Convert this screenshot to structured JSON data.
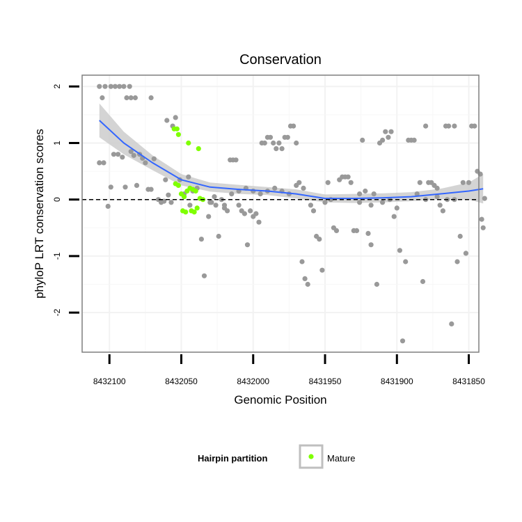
{
  "chart_data": {
    "type": "scatter",
    "title": "Conservation",
    "xlabel": "Genomic Position",
    "ylabel": "phyloP LRT conservation scores",
    "xlim": [
      8432119,
      8431843
    ],
    "x_reversed": true,
    "ylim": [
      -2.7,
      2.2
    ],
    "x_ticks": [
      8432100,
      8432050,
      8432000,
      8431950,
      8431900,
      8431850
    ],
    "x_tick_labels": [
      "8432100",
      "8432050",
      "8432000",
      "8431950",
      "8431900",
      "8431850"
    ],
    "y_ticks": [
      -2,
      -1,
      0,
      1,
      2
    ],
    "y_tick_labels": [
      "-2",
      "-1",
      "0",
      "1",
      "2"
    ],
    "grid": true,
    "reference_line": {
      "y": 0,
      "style": "dashed"
    },
    "colors": {
      "background_points": "#999999",
      "mature": "#7fff00",
      "smooth": "#3366ff",
      "band": "#cccccc"
    },
    "series": [
      {
        "name": "background",
        "points": [
          [
            8432107,
            2.0
          ],
          [
            8432103,
            2.0
          ],
          [
            8432099,
            2.0
          ],
          [
            8432096,
            2.0
          ],
          [
            8432093,
            2.0
          ],
          [
            8432090,
            2.0
          ],
          [
            8432086,
            2.0
          ],
          [
            8432105,
            1.8
          ],
          [
            8432088,
            1.8
          ],
          [
            8432085,
            1.8
          ],
          [
            8432082,
            1.8
          ],
          [
            8432071,
            1.8
          ],
          [
            8432107,
            0.65
          ],
          [
            8432104,
            0.65
          ],
          [
            8432101,
            -0.12
          ],
          [
            8432099,
            0.22
          ],
          [
            8432097,
            0.8
          ],
          [
            8432094,
            0.8
          ],
          [
            8432091,
            0.75
          ],
          [
            8432089,
            0.22
          ],
          [
            8432085,
            0.85
          ],
          [
            8432083,
            0.78
          ],
          [
            8432081,
            0.25
          ],
          [
            8432079,
            0.8
          ],
          [
            8432077,
            0.73
          ],
          [
            8432075,
            0.65
          ],
          [
            8432073,
            0.18
          ],
          [
            8432071,
            0.18
          ],
          [
            8432069,
            0.72
          ],
          [
            8432066,
            0.0
          ],
          [
            8432064,
            -0.05
          ],
          [
            8432062,
            -0.03
          ],
          [
            8432061,
            0.35
          ],
          [
            8432059,
            0.08
          ],
          [
            8432057,
            -0.05
          ],
          [
            8432056,
            1.3
          ],
          [
            8432054,
            1.45
          ],
          [
            8432060,
            1.4
          ],
          [
            8432051,
            0.35
          ],
          [
            8432045,
            0.4
          ],
          [
            8432042,
            0.15
          ],
          [
            8432039,
            0.2
          ],
          [
            8432036,
            -0.7
          ],
          [
            8432034,
            -1.35
          ],
          [
            8432031,
            -0.3
          ],
          [
            8432029,
            -0.05
          ],
          [
            8432027,
            0.05
          ],
          [
            8432024,
            -0.65
          ],
          [
            8432022,
            0.0
          ],
          [
            8432020,
            -0.1
          ],
          [
            8432018,
            -0.2
          ],
          [
            8432016,
            0.7
          ],
          [
            8432014,
            0.7
          ],
          [
            8432012,
            0.7
          ],
          [
            8432010,
            -0.1
          ],
          [
            8432008,
            -0.2
          ],
          [
            8432006,
            -0.25
          ],
          [
            8432004,
            -0.8
          ],
          [
            8432002,
            -0.2
          ],
          [
            8432000,
            -0.3
          ],
          [
            8431998,
            -0.25
          ],
          [
            8431996,
            -0.4
          ],
          [
            8431994,
            1.0
          ],
          [
            8431992,
            1.0
          ],
          [
            8431990,
            1.1
          ],
          [
            8431988,
            1.1
          ],
          [
            8431986,
            1.0
          ],
          [
            8431984,
            0.9
          ],
          [
            8431982,
            1.0
          ],
          [
            8431980,
            0.9
          ],
          [
            8431978,
            1.1
          ],
          [
            8431976,
            1.1
          ],
          [
            8431974,
            1.3
          ],
          [
            8431972,
            1.3
          ],
          [
            8431970,
            1.0
          ],
          [
            8431968,
            0.3
          ],
          [
            8431966,
            -1.1
          ],
          [
            8431964,
            -1.4
          ],
          [
            8431962,
            -1.5
          ],
          [
            8431960,
            -0.1
          ],
          [
            8431958,
            -0.2
          ],
          [
            8431956,
            -0.65
          ],
          [
            8431954,
            -0.7
          ],
          [
            8431952,
            -1.25
          ],
          [
            8431950,
            -0.05
          ],
          [
            8431948,
            0.3
          ],
          [
            8431946,
            0.0
          ],
          [
            8431944,
            -0.5
          ],
          [
            8431942,
            -0.55
          ],
          [
            8431940,
            0.35
          ],
          [
            8431938,
            0.4
          ],
          [
            8431936,
            0.4
          ],
          [
            8431934,
            0.4
          ],
          [
            8431932,
            0.3
          ],
          [
            8431930,
            -0.55
          ],
          [
            8431928,
            -0.55
          ],
          [
            8431926,
            0.1
          ],
          [
            8431924,
            1.05
          ],
          [
            8431922,
            0.15
          ],
          [
            8431920,
            -0.6
          ],
          [
            8431918,
            -0.8
          ],
          [
            8431916,
            0.1
          ],
          [
            8431914,
            -1.5
          ],
          [
            8431912,
            1.0
          ],
          [
            8431910,
            1.05
          ],
          [
            8431908,
            1.2
          ],
          [
            8431906,
            1.1
          ],
          [
            8431904,
            1.2
          ],
          [
            8431902,
            -0.3
          ],
          [
            8431900,
            -0.15
          ],
          [
            8431898,
            -0.9
          ],
          [
            8431896,
            -2.5
          ],
          [
            8431894,
            -1.1
          ],
          [
            8431892,
            1.05
          ],
          [
            8431890,
            1.05
          ],
          [
            8431888,
            1.05
          ],
          [
            8431886,
            0.1
          ],
          [
            8431884,
            0.3
          ],
          [
            8431882,
            -1.45
          ],
          [
            8431880,
            1.3
          ],
          [
            8431878,
            0.3
          ],
          [
            8431876,
            0.3
          ],
          [
            8431874,
            0.25
          ],
          [
            8431872,
            0.2
          ],
          [
            8431870,
            -0.1
          ],
          [
            8431868,
            -0.2
          ],
          [
            8431866,
            1.3
          ],
          [
            8431864,
            1.3
          ],
          [
            8431862,
            -2.2
          ],
          [
            8431860,
            1.3
          ],
          [
            8431858,
            -1.1
          ],
          [
            8431856,
            -0.65
          ],
          [
            8431854,
            0.3
          ],
          [
            8431852,
            -0.95
          ],
          [
            8431850,
            0.3
          ],
          [
            8431848,
            1.3
          ],
          [
            8431846,
            1.3
          ],
          [
            8431844,
            0.5
          ],
          [
            8431842,
            0.45
          ],
          [
            8431841,
            -0.35
          ],
          [
            8431840,
            -0.5
          ],
          [
            8431839,
            0.02
          ],
          [
            8431926,
            -0.05
          ],
          [
            8431918,
            -0.1
          ],
          [
            8431910,
            -0.05
          ],
          [
            8431905,
            0.0
          ],
          [
            8431880,
            0.0
          ],
          [
            8431872,
            0.05
          ],
          [
            8431865,
            0.0
          ],
          [
            8431860,
            0.0
          ],
          [
            8431990,
            0.15
          ],
          [
            8431985,
            0.2
          ],
          [
            8431980,
            0.15
          ],
          [
            8431975,
            0.1
          ],
          [
            8431970,
            0.25
          ],
          [
            8431965,
            0.2
          ],
          [
            8432015,
            0.1
          ],
          [
            8432010,
            0.15
          ],
          [
            8432005,
            0.2
          ],
          [
            8432000,
            0.15
          ],
          [
            8431995,
            0.1
          ],
          [
            8432030,
            -0.05
          ],
          [
            8432026,
            -0.1
          ],
          [
            8432020,
            -0.15
          ],
          [
            8432044,
            -0.1
          ],
          [
            8432048,
            0.1
          ]
        ]
      },
      {
        "name": "Mature",
        "points": [
          [
            8432055,
            1.25
          ],
          [
            8432053,
            1.25
          ],
          [
            8432052,
            1.15
          ],
          [
            8432045,
            1.0
          ],
          [
            8432038,
            0.9
          ],
          [
            8432054,
            0.28
          ],
          [
            8432052,
            0.25
          ],
          [
            8432050,
            0.1
          ],
          [
            8432048,
            0.05
          ],
          [
            8432046,
            0.15
          ],
          [
            8432044,
            0.2
          ],
          [
            8432042,
            0.18
          ],
          [
            8432040,
            0.15
          ],
          [
            8432049,
            -0.2
          ],
          [
            8432047,
            -0.22
          ],
          [
            8432043,
            -0.2
          ],
          [
            8432041,
            -0.22
          ],
          [
            8432039,
            -0.15
          ],
          [
            8432037,
            0.02
          ],
          [
            8432035,
            0.0
          ]
        ]
      }
    ],
    "smooth": {
      "x": [
        8432107,
        8432090,
        8432070,
        8432050,
        8432030,
        8432010,
        8431990,
        8431970,
        8431950,
        8431930,
        8431910,
        8431890,
        8431870,
        8431850,
        8431840
      ],
      "y": [
        1.4,
        1.0,
        0.65,
        0.35,
        0.22,
        0.18,
        0.15,
        0.1,
        0.02,
        0.02,
        0.03,
        0.05,
        0.1,
        0.15,
        0.19
      ],
      "lower": [
        1.1,
        0.8,
        0.52,
        0.25,
        0.14,
        0.1,
        0.08,
        0.02,
        -0.05,
        -0.06,
        -0.05,
        -0.03,
        0.01,
        0.0,
        -0.07
      ],
      "upper": [
        1.7,
        1.2,
        0.78,
        0.45,
        0.3,
        0.26,
        0.22,
        0.18,
        0.09,
        0.1,
        0.11,
        0.13,
        0.19,
        0.3,
        0.45
      ]
    },
    "legend": {
      "title": "Hairpin partition",
      "entries": [
        "Mature"
      ],
      "position": "bottom"
    }
  }
}
